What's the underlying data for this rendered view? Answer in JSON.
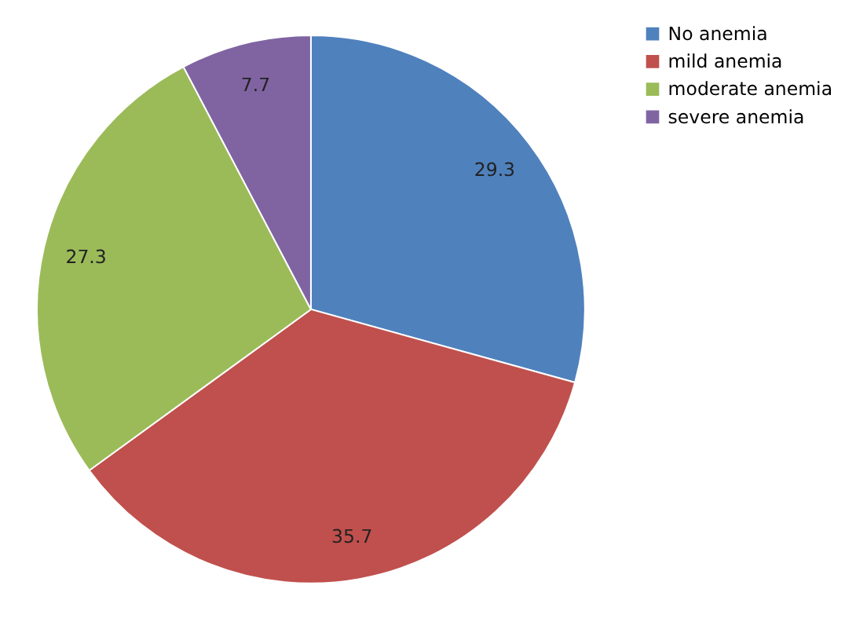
{
  "chart_data": {
    "type": "pie",
    "categories": [
      "No anemia",
      "mild anemia",
      "moderate anemia",
      "severe anemia"
    ],
    "values": [
      29.3,
      35.7,
      27.3,
      7.7
    ],
    "colors": [
      "#4f81bd",
      "#c0504d",
      "#9bbb59",
      "#8064a2"
    ],
    "data_labels": true,
    "legend": "right"
  }
}
